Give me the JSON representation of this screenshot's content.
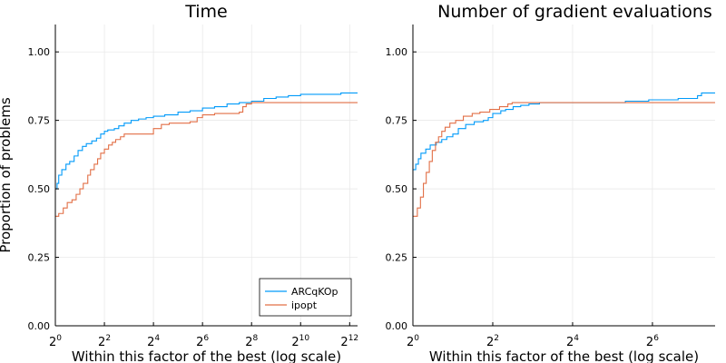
{
  "colors": {
    "series1": "#009af9",
    "series2": "#e26f46"
  },
  "chart_data": [
    {
      "type": "line",
      "title": "Time",
      "xlabel": "Within this factor of the best (log scale)",
      "ylabel": "Proportion of problems",
      "x_scale": "log2",
      "xlim": [
        1,
        5120
      ],
      "ylim": [
        0,
        1.1
      ],
      "xticks": [
        {
          "value": 1,
          "base": "2",
          "exp": "0"
        },
        {
          "value": 4,
          "base": "2",
          "exp": "2"
        },
        {
          "value": 16,
          "base": "2",
          "exp": "4"
        },
        {
          "value": 64,
          "base": "2",
          "exp": "6"
        },
        {
          "value": 256,
          "base": "2",
          "exp": "8"
        },
        {
          "value": 1024,
          "base": "2",
          "exp": "10"
        },
        {
          "value": 4096,
          "base": "2",
          "exp": "12"
        }
      ],
      "yticks": [
        "0.00",
        "0.25",
        "0.50",
        "0.75",
        "1.00"
      ],
      "grid": true,
      "legend_position": "bottom-right",
      "series": [
        {
          "name": "ARCqKOp",
          "points": [
            [
              1,
              0.5
            ],
            [
              1.05,
              0.52
            ],
            [
              1.1,
              0.55
            ],
            [
              1.2,
              0.57
            ],
            [
              1.35,
              0.59
            ],
            [
              1.5,
              0.6
            ],
            [
              1.7,
              0.62
            ],
            [
              1.9,
              0.64
            ],
            [
              2.15,
              0.655
            ],
            [
              2.4,
              0.665
            ],
            [
              2.8,
              0.675
            ],
            [
              3.2,
              0.685
            ],
            [
              3.6,
              0.7
            ],
            [
              4.0,
              0.71
            ],
            [
              4.4,
              0.715
            ],
            [
              5.3,
              0.72
            ],
            [
              6.0,
              0.73
            ],
            [
              7.0,
              0.74
            ],
            [
              8.5,
              0.75
            ],
            [
              10.5,
              0.755
            ],
            [
              13,
              0.76
            ],
            [
              16,
              0.765
            ],
            [
              22,
              0.77
            ],
            [
              32,
              0.78
            ],
            [
              45,
              0.785
            ],
            [
              64,
              0.795
            ],
            [
              90,
              0.8
            ],
            [
              128,
              0.81
            ],
            [
              181,
              0.815
            ],
            [
              256,
              0.82
            ],
            [
              362,
              0.83
            ],
            [
              512,
              0.835
            ],
            [
              724,
              0.84
            ],
            [
              1024,
              0.845
            ],
            [
              3200,
              0.85
            ],
            [
              5120,
              0.85
            ]
          ]
        },
        {
          "name": "ipopt",
          "points": [
            [
              1,
              0.4
            ],
            [
              1.1,
              0.41
            ],
            [
              1.25,
              0.43
            ],
            [
              1.4,
              0.45
            ],
            [
              1.6,
              0.46
            ],
            [
              1.8,
              0.48
            ],
            [
              2.0,
              0.5
            ],
            [
              2.2,
              0.52
            ],
            [
              2.5,
              0.55
            ],
            [
              2.7,
              0.57
            ],
            [
              3.0,
              0.59
            ],
            [
              3.3,
              0.61
            ],
            [
              3.6,
              0.63
            ],
            [
              4.0,
              0.645
            ],
            [
              4.5,
              0.66
            ],
            [
              5.0,
              0.67
            ],
            [
              5.5,
              0.68
            ],
            [
              6.3,
              0.69
            ],
            [
              7.0,
              0.7
            ],
            [
              14,
              0.7
            ],
            [
              16,
              0.72
            ],
            [
              20,
              0.735
            ],
            [
              25,
              0.74
            ],
            [
              45,
              0.745
            ],
            [
              55,
              0.76
            ],
            [
              64,
              0.77
            ],
            [
              90,
              0.775
            ],
            [
              181,
              0.78
            ],
            [
              200,
              0.8
            ],
            [
              220,
              0.81
            ],
            [
              256,
              0.815
            ],
            [
              5120,
              0.815
            ]
          ]
        }
      ]
    },
    {
      "type": "line",
      "title": "Number of gradient evaluations",
      "xlabel": "Within this factor of the best (log scale)",
      "ylabel": "",
      "x_scale": "log2",
      "xlim": [
        1,
        190
      ],
      "ylim": [
        0,
        1.1
      ],
      "xticks": [
        {
          "value": 1,
          "base": "2",
          "exp": "0"
        },
        {
          "value": 4,
          "base": "2",
          "exp": "2"
        },
        {
          "value": 16,
          "base": "2",
          "exp": "4"
        },
        {
          "value": 64,
          "base": "2",
          "exp": "6"
        }
      ],
      "yticks": [
        "0.00",
        "0.25",
        "0.50",
        "0.75",
        "1.00"
      ],
      "grid": true,
      "series": [
        {
          "name": "ARCqKOp",
          "points": [
            [
              1,
              0.57
            ],
            [
              1.05,
              0.59
            ],
            [
              1.1,
              0.61
            ],
            [
              1.15,
              0.63
            ],
            [
              1.25,
              0.645
            ],
            [
              1.35,
              0.66
            ],
            [
              1.5,
              0.67
            ],
            [
              1.65,
              0.68
            ],
            [
              1.8,
              0.69
            ],
            [
              2.0,
              0.7
            ],
            [
              2.2,
              0.72
            ],
            [
              2.5,
              0.735
            ],
            [
              2.9,
              0.745
            ],
            [
              3.4,
              0.75
            ],
            [
              3.7,
              0.76
            ],
            [
              4.0,
              0.775
            ],
            [
              4.6,
              0.785
            ],
            [
              5.0,
              0.79
            ],
            [
              5.7,
              0.8
            ],
            [
              6.5,
              0.805
            ],
            [
              7.5,
              0.81
            ],
            [
              9,
              0.815
            ],
            [
              40,
              0.82
            ],
            [
              60,
              0.825
            ],
            [
              100,
              0.83
            ],
            [
              140,
              0.84
            ],
            [
              150,
              0.85
            ],
            [
              190,
              0.85
            ]
          ]
        },
        {
          "name": "ipopt",
          "points": [
            [
              1,
              0.4
            ],
            [
              1.08,
              0.43
            ],
            [
              1.14,
              0.47
            ],
            [
              1.2,
              0.52
            ],
            [
              1.26,
              0.56
            ],
            [
              1.33,
              0.6
            ],
            [
              1.4,
              0.64
            ],
            [
              1.48,
              0.67
            ],
            [
              1.56,
              0.69
            ],
            [
              1.65,
              0.71
            ],
            [
              1.75,
              0.725
            ],
            [
              1.9,
              0.74
            ],
            [
              2.1,
              0.75
            ],
            [
              2.4,
              0.765
            ],
            [
              2.8,
              0.775
            ],
            [
              3.2,
              0.78
            ],
            [
              3.8,
              0.79
            ],
            [
              4.5,
              0.8
            ],
            [
              5.2,
              0.81
            ],
            [
              5.6,
              0.815
            ],
            [
              190,
              0.815
            ]
          ]
        }
      ]
    }
  ]
}
